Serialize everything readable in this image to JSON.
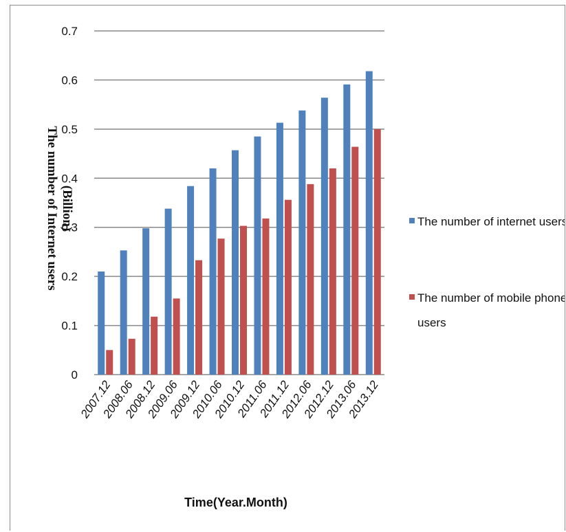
{
  "chart_data": {
    "type": "bar",
    "categories": [
      "2007.12",
      "2008.06",
      "2008.12",
      "2009.06",
      "2009.12",
      "2010.06",
      "2010.12",
      "2011.06",
      "2011.12",
      "2012.06",
      "2012.12",
      "2013.06",
      "2013.12"
    ],
    "series": [
      {
        "name": "The number of internet users",
        "color": "#4f81bd",
        "values": [
          0.21,
          0.253,
          0.298,
          0.338,
          0.384,
          0.42,
          0.457,
          0.485,
          0.513,
          0.538,
          0.564,
          0.591,
          0.618
        ]
      },
      {
        "name": "The number of mobile phone users",
        "color": "#c0504d",
        "values": [
          0.05,
          0.073,
          0.118,
          0.155,
          0.233,
          0.277,
          0.303,
          0.318,
          0.356,
          0.388,
          0.42,
          0.464,
          0.5
        ]
      }
    ],
    "yticks": [
      "0",
      "0.1",
      "0.2",
      "0.3",
      "0.4",
      "0.5",
      "0.6",
      "0.7"
    ],
    "ylim": [
      0,
      0.7
    ],
    "ylabel_line1": "(Billion)",
    "ylabel_line2": "The number of Internet users",
    "xlabel": "Time(Year.Month)",
    "legend_position": "right",
    "grid": true,
    "legend": {
      "item1_line1": "The number of internet users",
      "item2_line1": "The number of mobile phone",
      "item2_line2": "users"
    }
  }
}
